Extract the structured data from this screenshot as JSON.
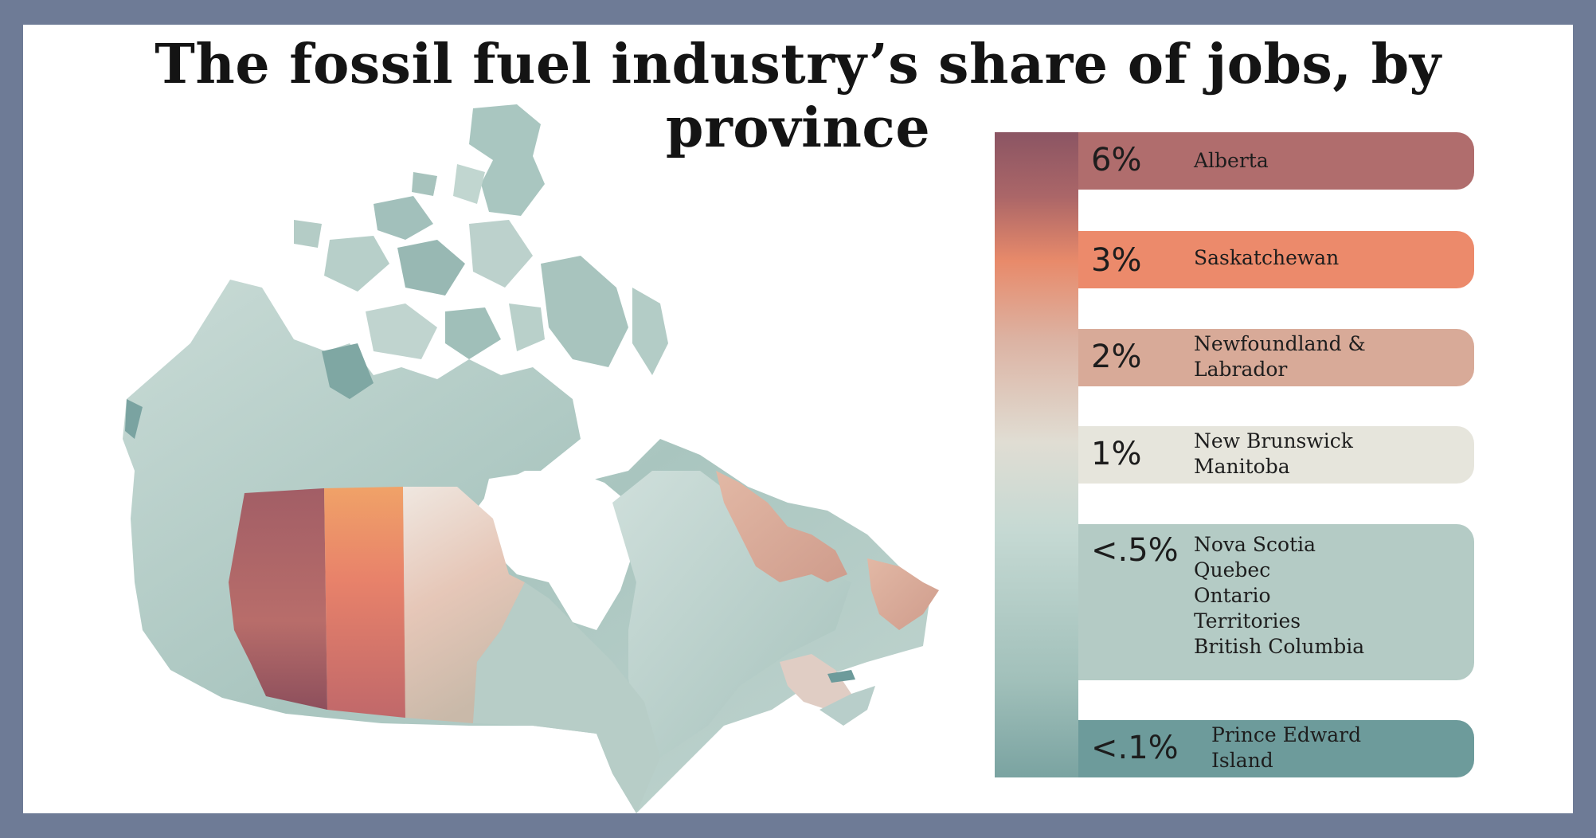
{
  "title": "The fossil fuel industry’s share of jobs, by province",
  "colors": {
    "frame": "#6e7b96",
    "alberta": "#b06d6d",
    "saskatchewan": "#ec8a6b",
    "newfoundland": "#d8aa98",
    "new_brunswick_manitoba": "#e6e5dc",
    "low": "#b4cbc5",
    "lowest": "#6d9b9b"
  },
  "legend": [
    {
      "pct": "6%",
      "names": [
        "Alberta"
      ],
      "color": "#b06d6d"
    },
    {
      "pct": "3%",
      "names": [
        "Saskatchewan"
      ],
      "color": "#ec8a6b"
    },
    {
      "pct": "2%",
      "names": [
        "Newfoundland &",
        "Labrador"
      ],
      "color": "#d8aa98"
    },
    {
      "pct": "1%",
      "names": [
        "New Brunswick",
        "Manitoba"
      ],
      "color": "#e6e5dc"
    },
    {
      "pct": "<.5%",
      "names": [
        "Nova Scotia",
        "Quebec",
        "Ontario",
        "Territories",
        "British Columbia"
      ],
      "color": "#b4cbc5"
    },
    {
      "pct": "<.1%",
      "names": [
        "Prince Edward",
        "Island"
      ],
      "color": "#6d9b9b"
    }
  ]
}
